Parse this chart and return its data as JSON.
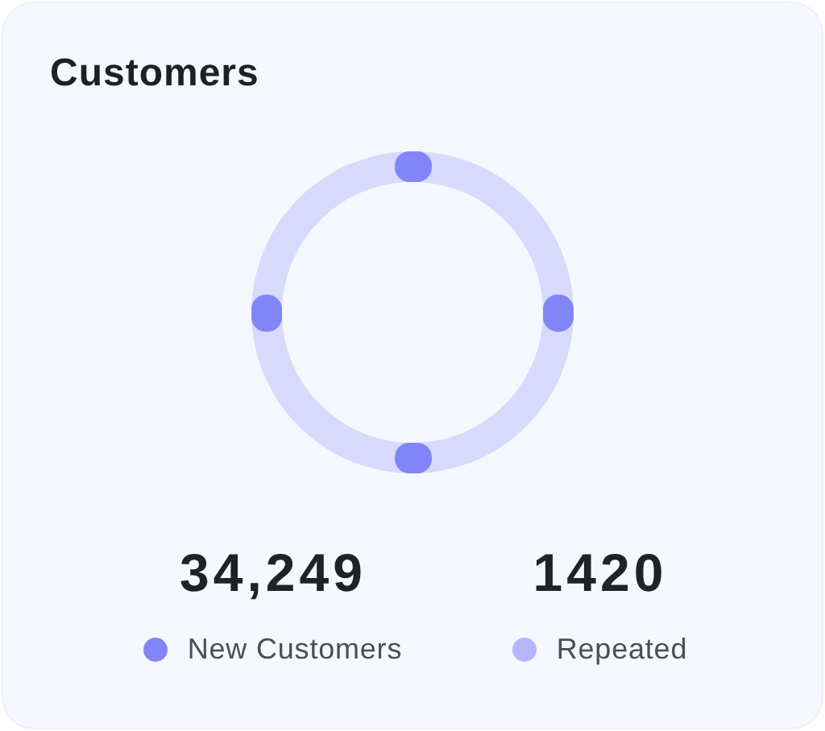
{
  "chart_data": {
    "type": "other",
    "title": "Customers",
    "categories": [
      "New Customers",
      "Repeated"
    ],
    "values": [
      34249,
      1420
    ],
    "value_labels": [
      "34,249",
      "1420"
    ],
    "colors": [
      "#8285f8",
      "#b4b6fb"
    ]
  }
}
